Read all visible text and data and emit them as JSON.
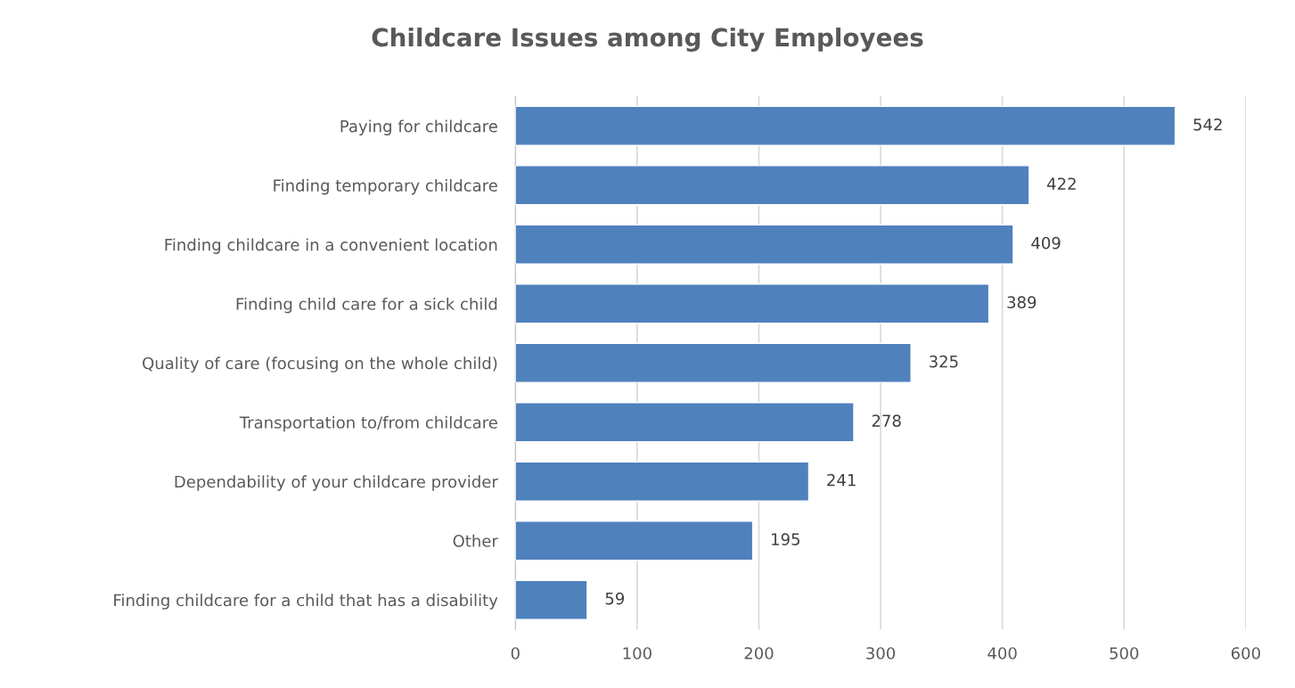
{
  "chart_data": {
    "type": "bar",
    "orientation": "horizontal",
    "title": "Childcare Issues among City Employees",
    "categories": [
      "Paying for childcare",
      "Finding temporary childcare",
      "Finding childcare in a convenient location",
      "Finding child care for a sick child",
      "Quality of care (focusing on the whole child)",
      "Transportation to/from childcare",
      "Dependability of your childcare provider",
      "Other",
      "Finding childcare for a child that has a disability"
    ],
    "values": [
      542,
      422,
      409,
      389,
      325,
      278,
      241,
      195,
      59
    ],
    "color": "#4f81bd",
    "xlim": [
      0,
      600
    ],
    "xticks": [
      0,
      100,
      200,
      300,
      400,
      500,
      600
    ],
    "grid": "x",
    "data_labels": true,
    "legend": false
  }
}
